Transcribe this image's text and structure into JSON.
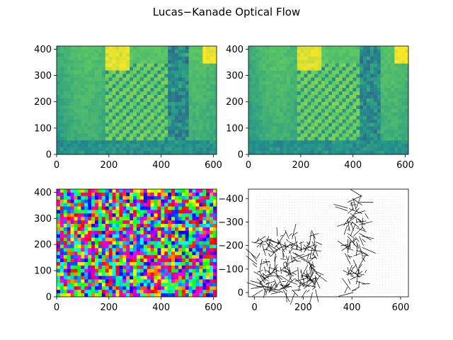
{
  "figure": {
    "title": "Lucas−Kanade Optical Flow"
  },
  "chart_data": [
    {
      "type": "heatmap",
      "position": "top-left",
      "colormap": "viridis",
      "xlim": [
        0,
        612
      ],
      "ylim": [
        412,
        0
      ],
      "xticks": [
        "0",
        "200",
        "400",
        "600"
      ],
      "yticks": [
        "0",
        "100",
        "200",
        "300",
        "400"
      ]
    },
    {
      "type": "heatmap",
      "position": "top-right",
      "colormap": "viridis",
      "xlim": [
        0,
        612
      ],
      "ylim": [
        412,
        0
      ],
      "xticks": [
        "0",
        "200",
        "400",
        "600"
      ],
      "yticks": [
        "0",
        "100",
        "200",
        "300",
        "400"
      ]
    },
    {
      "type": "heatmap",
      "position": "bottom-left",
      "colormap": "hsv",
      "xlim": [
        0,
        612
      ],
      "ylim": [
        412,
        0
      ],
      "xticks": [
        "0",
        "200",
        "400",
        "600"
      ],
      "yticks": [
        "0",
        "100",
        "200",
        "300",
        "400"
      ]
    },
    {
      "type": "scatter",
      "subtype": "quiver",
      "position": "bottom-right",
      "xlim": [
        -25,
        632
      ],
      "ylim": [
        -440,
        18
      ],
      "xticks": [
        "0",
        "200",
        "400",
        "600"
      ],
      "yticks": [
        "0",
        "−100",
        "−200",
        "−300",
        "−400"
      ]
    }
  ]
}
